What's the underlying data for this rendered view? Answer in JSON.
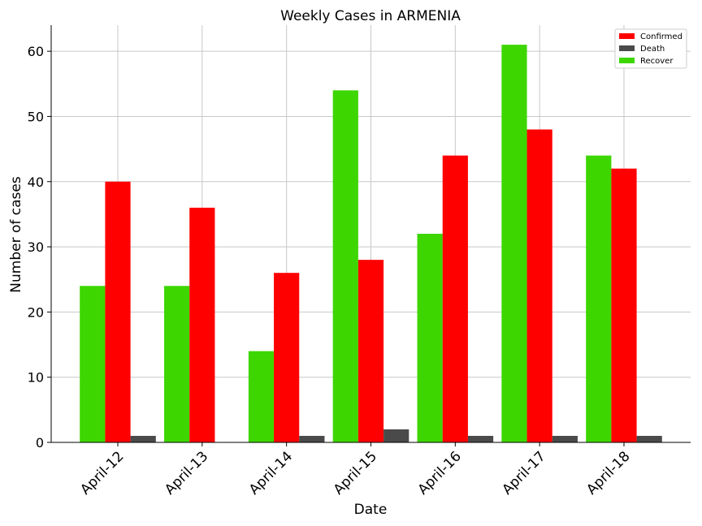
{
  "chart_data": {
    "type": "bar",
    "title": "Weekly Cases in ARMENIA",
    "xlabel": "Date",
    "ylabel": "Number of cases",
    "categories": [
      "April-12",
      "April-13",
      "April-14",
      "April-15",
      "April-16",
      "April-17",
      "April-18"
    ],
    "series": [
      {
        "name": "Recover",
        "color": "#3dd600",
        "values": [
          24,
          24,
          14,
          54,
          32,
          61,
          44
        ]
      },
      {
        "name": "Confirmed",
        "color": "#ff0000",
        "values": [
          40,
          36,
          26,
          28,
          44,
          48,
          42
        ]
      },
      {
        "name": "Death",
        "color": "#4a4a4a",
        "values": [
          1,
          0,
          1,
          2,
          1,
          1,
          1
        ]
      }
    ],
    "legend_order": [
      "Confirmed",
      "Death",
      "Recover"
    ],
    "legend_position": "top-right",
    "ylim": [
      0,
      64
    ],
    "yticks": [
      0,
      10,
      20,
      30,
      40,
      50,
      60
    ],
    "grid": true
  }
}
